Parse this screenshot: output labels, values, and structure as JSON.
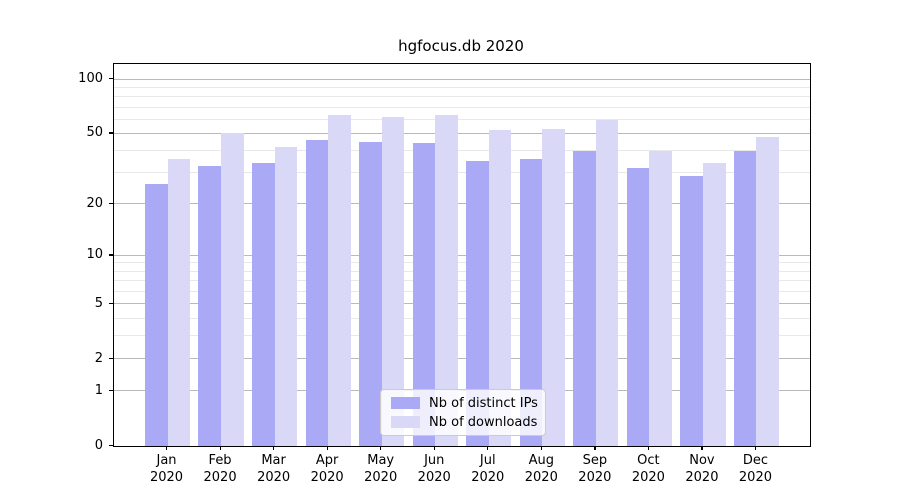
{
  "chart_data": {
    "type": "bar",
    "title": "hgfocus.db 2020",
    "categories": [
      "Jan",
      "Feb",
      "Mar",
      "Apr",
      "May",
      "Jun",
      "Jul",
      "Aug",
      "Sep",
      "Oct",
      "Nov",
      "Dec"
    ],
    "category_second_line": "2020",
    "series": [
      {
        "name": "Nb of distinct IPs",
        "color": "#a9a9f5",
        "values": [
          26,
          33,
          34,
          46,
          45,
          44,
          35,
          36,
          40,
          32,
          29,
          40
        ]
      },
      {
        "name": "Nb of downloads",
        "color": "#d9d9f7",
        "values": [
          36,
          50,
          42,
          63,
          62,
          63,
          52,
          53,
          59,
          40,
          34,
          48
        ]
      }
    ],
    "xlabel": "",
    "ylabel": "",
    "yscale": "log1p",
    "yticks": [
      0,
      1,
      2,
      5,
      10,
      20,
      50,
      100
    ],
    "yticks_minor": [
      3,
      4,
      6,
      7,
      8,
      9,
      30,
      40,
      60,
      70,
      80,
      90
    ],
    "ylim": [
      0,
      121
    ],
    "grid": true,
    "legend_position": "lower center",
    "colors": {
      "grid_major": "#b9b9b9",
      "grid_minor": "#e8e8e8",
      "spine": "#000000",
      "background": "#ffffff"
    }
  }
}
